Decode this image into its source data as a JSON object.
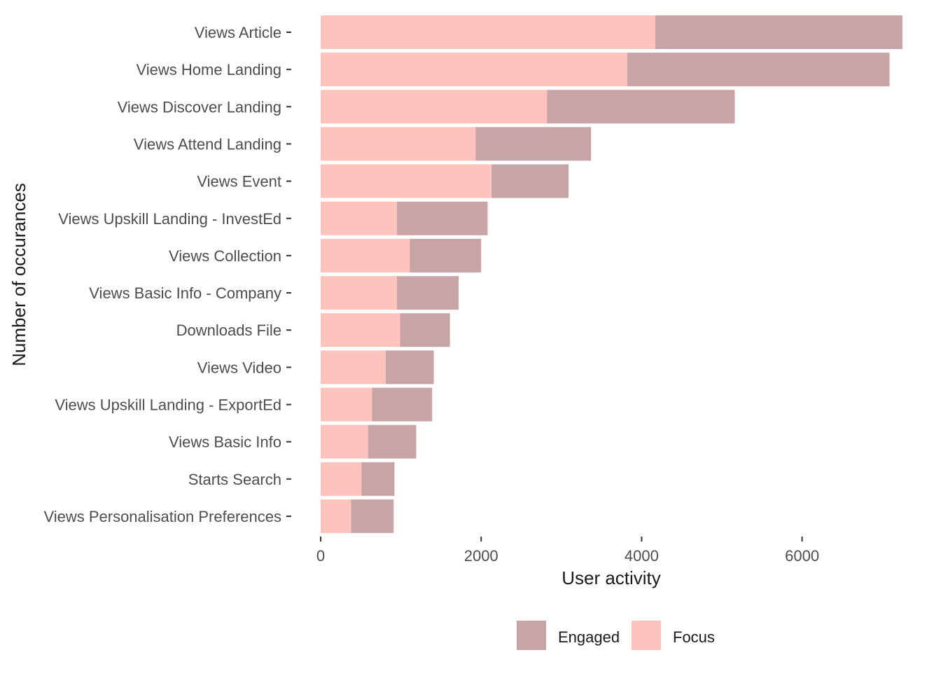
{
  "chart_data": {
    "type": "bar",
    "orientation": "horizontal",
    "stacked": true,
    "xlabel": "User activity",
    "ylabel": "Number of occurances",
    "xlim": [
      0,
      7300
    ],
    "x_ticks": [
      0,
      2000,
      4000,
      6000
    ],
    "grid": false,
    "legend_position": "bottom",
    "categories": [
      "Views Article",
      "Views Home Landing",
      "Views Discover Landing",
      "Views Attend Landing",
      "Views Event",
      "Views Upskill Landing - InvestEd",
      "Views Collection",
      "Views Basic Info - Company",
      "Downloads File",
      "Views Video",
      "Views Upskill Landing - ExportEd",
      "Views Basic Info",
      "Starts Search",
      "Views Personalisation Preferences"
    ],
    "series": [
      {
        "name": "Focus",
        "color": "#FCC4BD",
        "values": [
          4170,
          3820,
          2820,
          1930,
          2130,
          950,
          1110,
          950,
          990,
          810,
          640,
          590,
          510,
          380
        ]
      },
      {
        "name": "Engaged",
        "color": "#C7A5A7",
        "values": [
          3080,
          3270,
          2340,
          1440,
          960,
          1130,
          890,
          770,
          620,
          600,
          750,
          600,
          410,
          530
        ]
      }
    ],
    "legend": [
      {
        "name": "Engaged",
        "color": "#C7A5A7"
      },
      {
        "name": "Focus",
        "color": "#FCC4BD"
      }
    ]
  }
}
